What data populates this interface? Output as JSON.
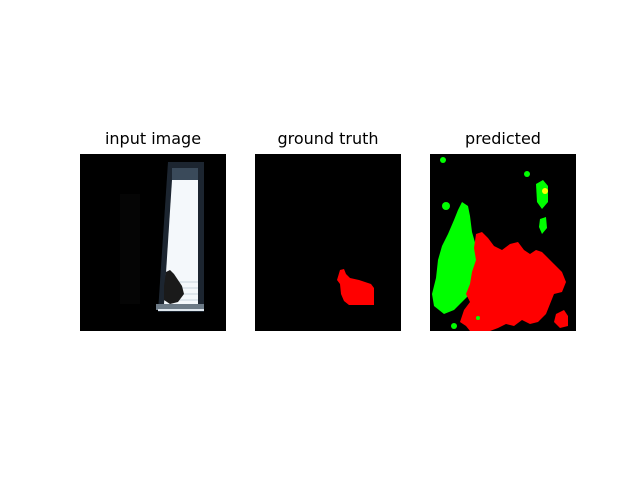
{
  "figure": {
    "panels": [
      {
        "title": "input image"
      },
      {
        "title": "ground truth"
      },
      {
        "title": "predicted"
      }
    ]
  },
  "colors": {
    "background": "#000000",
    "mask_class_a": "#ff0000",
    "mask_class_b": "#00ff00",
    "highlight": "#ffff00",
    "window_light": "#f4f8fb"
  }
}
